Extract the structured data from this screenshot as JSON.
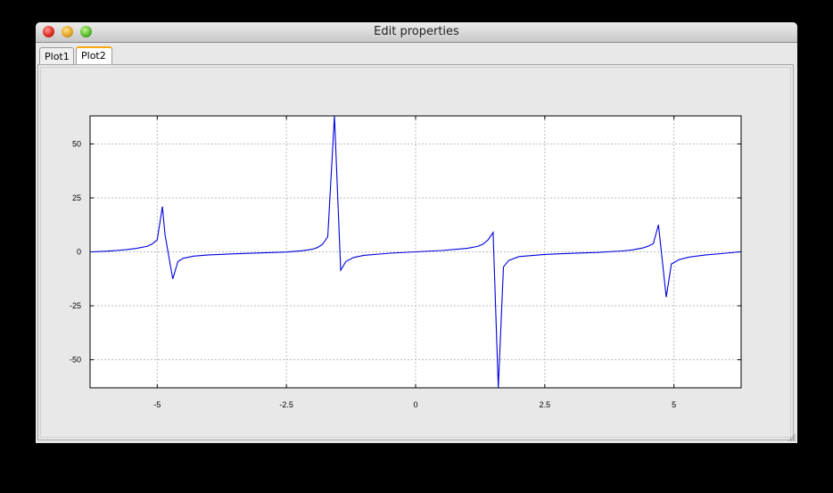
{
  "window": {
    "title": "Edit properties"
  },
  "tabs": [
    {
      "label": "Plot1"
    },
    {
      "label": "Plot2"
    }
  ],
  "colors": {
    "series": "#0000dd",
    "grid": "#bbbbbb",
    "active_tab_accent": "#f7a80c"
  },
  "chart_data": {
    "type": "line",
    "title": "",
    "xlabel": "",
    "ylabel": "",
    "xlim": [
      -6.3,
      6.3
    ],
    "ylim": [
      -63,
      63
    ],
    "xticks": [
      -5,
      -2.5,
      0,
      2.5,
      5
    ],
    "xtick_labels": [
      "-5",
      "-2.5",
      "0",
      "2.5",
      "5"
    ],
    "yticks": [
      50,
      25,
      0,
      -25,
      -50
    ],
    "ytick_labels": [
      "50",
      "25",
      "0",
      "-25",
      "-50"
    ],
    "grid": true,
    "series": [
      {
        "x": [
          -6.28,
          -6.0,
          -5.8,
          -5.6,
          -5.4,
          -5.2,
          -5.1,
          -5.0,
          -4.9,
          -4.85,
          -4.7,
          -4.6,
          -4.5,
          -4.3,
          -4.0,
          -3.5,
          -3.0,
          -2.5,
          -2.2,
          -2.0,
          -1.9,
          -1.8,
          -1.7,
          -1.57,
          -1.45,
          -1.35,
          -1.2,
          -1.0,
          -0.5,
          0,
          0.5,
          1.0,
          1.2,
          1.3,
          1.4,
          1.5,
          1.6,
          1.7,
          1.8,
          2.0,
          2.5,
          3.0,
          3.5,
          4.0,
          4.2,
          4.4,
          4.5,
          4.6,
          4.7,
          4.85,
          4.95,
          5.1,
          5.3,
          5.6,
          6.0,
          6.28
        ],
        "y": [
          0,
          0.3,
          0.6,
          1.0,
          1.6,
          2.5,
          3.6,
          5.6,
          21,
          8,
          -12.5,
          -4.5,
          -3.0,
          -2.0,
          -1.4,
          -0.9,
          -0.5,
          -0.1,
          0.5,
          1.2,
          2.0,
          3.5,
          7,
          63,
          -8.5,
          -4.5,
          -2.6,
          -1.6,
          -0.6,
          0,
          0.6,
          1.6,
          2.5,
          3.5,
          5.5,
          9,
          -63,
          -7,
          -4,
          -2.2,
          -1.2,
          -0.7,
          -0.3,
          0.4,
          0.9,
          1.8,
          2.6,
          3.8,
          12.5,
          -21,
          -5.6,
          -3.6,
          -2.4,
          -1.5,
          -0.6,
          0
        ]
      }
    ]
  }
}
